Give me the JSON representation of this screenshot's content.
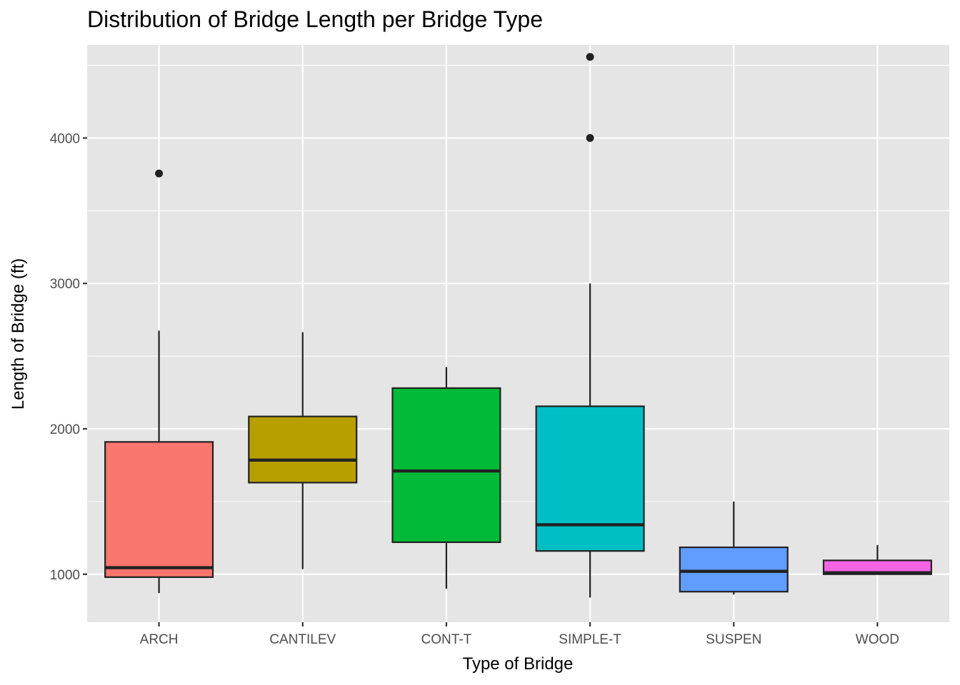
{
  "chart_data": {
    "type": "boxplot",
    "title": "Distribution of Bridge Length per Bridge Type",
    "xlabel": "Type of Bridge",
    "ylabel": "Length of Bridge (ft)",
    "ylim": [
      670,
      4640
    ],
    "y_ticks": [
      1000,
      2000,
      3000,
      4000
    ],
    "y_tick_labels": [
      "1000",
      "2000",
      "3000",
      "4000"
    ],
    "grid": true,
    "legend": "none",
    "categories": [
      "ARCH",
      "CANTILEV",
      "CONT-T",
      "SIMPLE-T",
      "SUSPEN",
      "WOOD"
    ],
    "boxes": [
      {
        "category": "ARCH",
        "min": 870,
        "q1": 980,
        "median": 1045,
        "q3": 1910,
        "max": 2675,
        "outliers": [
          3756
        ],
        "color": "#F8766D"
      },
      {
        "category": "CANTILEV",
        "min": 1035,
        "q1": 1630,
        "median": 1785,
        "q3": 2085,
        "max": 2665,
        "outliers": [],
        "color": "#B79F00"
      },
      {
        "category": "CONT-T",
        "min": 900,
        "q1": 1220,
        "median": 1710,
        "q3": 2280,
        "max": 2425,
        "outliers": [],
        "color": "#00BA38"
      },
      {
        "category": "SIMPLE-T",
        "min": 840,
        "q1": 1160,
        "median": 1340,
        "q3": 2155,
        "max": 3000,
        "outliers": [
          4000,
          4558
        ],
        "color": "#00BFC4"
      },
      {
        "category": "SUSPEN",
        "min": 860,
        "q1": 880,
        "median": 1020,
        "q3": 1185,
        "max": 1500,
        "outliers": [],
        "color": "#619CFF"
      },
      {
        "category": "WOOD",
        "min": 1000,
        "q1": 1000,
        "median": 1010,
        "q3": 1095,
        "max": 1200,
        "outliers": [],
        "color": "#F564E3"
      }
    ],
    "colors": {
      "panel_background": "#E5E5E5",
      "grid_major": "#FFFFFF",
      "box_outline": "#222222"
    }
  }
}
